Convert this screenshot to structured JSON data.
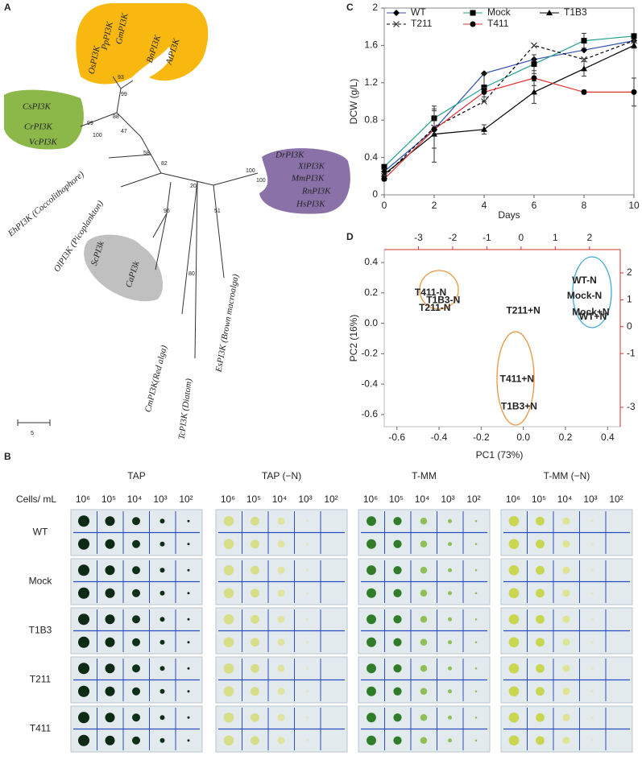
{
  "panel_labels": [
    "A",
    "B",
    "C",
    "D"
  ],
  "tree": {
    "clades": [
      "OsPI3K",
      "PpPI3K",
      "GmPI3K",
      "BnPI3K",
      "AtPI3K",
      "CsPI3K",
      "CrPI3K",
      "VcPI3K",
      "DrPI3K",
      "XlPI3K",
      "MmPI3K",
      "RnPI3K",
      "HsPI3K",
      "EhPI3K (Coccolithophore)",
      "OlPI3K (Picoplankton)",
      "ScPI3k",
      "CaPI3k",
      "CmPI3K(Red alga)",
      "TcPI3K (Diatom)",
      "EsPI3K (Brown macroalga)"
    ],
    "bootstrap": [
      "93",
      "99",
      "88",
      "99",
      "100",
      "47",
      "58",
      "82",
      "20",
      "100",
      "100",
      "96",
      "51",
      "80"
    ],
    "scale": "5"
  },
  "plates": {
    "media": [
      "TAP",
      "TAP (−N)",
      "T-MM",
      "T-MM (−N)"
    ],
    "cells_label": "Cells/ mL",
    "concentrations": [
      "10⁶",
      "10⁵",
      "10⁴",
      "10³",
      "10²"
    ],
    "strains": [
      "WT",
      "Mock",
      "T1B3",
      "T211",
      "T411"
    ]
  },
  "chart_data": [
    {
      "type": "line",
      "x": [
        0,
        2,
        4,
        6,
        8,
        10
      ],
      "xlim": [
        0,
        10
      ],
      "xticks": [
        0,
        2,
        4,
        6,
        8,
        10
      ],
      "ylim": [
        0,
        2
      ],
      "yticks": [
        0,
        0.4,
        0.8,
        1.2,
        1.6,
        2
      ],
      "x_label": "Days",
      "y_label": "DCW (g/L)",
      "series": [
        {
          "name": "WT",
          "color": "#3050b0",
          "marker": "diamond",
          "values": [
            0.25,
            0.7,
            1.3,
            1.45,
            1.55,
            1.65
          ]
        },
        {
          "name": "Mock",
          "color": "#20a090",
          "marker": "square",
          "values": [
            0.3,
            0.82,
            1.15,
            1.4,
            1.65,
            1.7
          ],
          "errors": [
            0.02,
            0.1,
            0.15,
            0.1,
            0.08,
            0.02
          ]
        },
        {
          "name": "T1B3",
          "color": "#000000",
          "marker": "triangle",
          "values": [
            0.22,
            0.65,
            0.7,
            1.1,
            1.35,
            1.6
          ],
          "errors": [
            0.02,
            0.3,
            0.05,
            0.12,
            0.08,
            0.03
          ]
        },
        {
          "name": "T211",
          "color": "#000000",
          "marker": "x",
          "line_style": "dashed",
          "values": [
            0.2,
            0.72,
            1.0,
            1.6,
            1.45,
            1.65
          ]
        },
        {
          "name": "T411",
          "color": "#e03030",
          "marker": "circle",
          "values": [
            0.17,
            0.7,
            1.1,
            1.25,
            1.1,
            1.1
          ],
          "errors": [
            0.02,
            0.2,
            0.05,
            0.08,
            0.02,
            0.15
          ]
        }
      ]
    },
    {
      "type": "scatter",
      "x_label": "PC1 (73%)",
      "y_label": "PC2 (16%)",
      "color": "#2020c0",
      "axis2_color": "#cc3333",
      "xlim": [
        -0.66,
        0.46
      ],
      "xticks": [
        -0.6,
        -0.4,
        -0.2,
        {
          "value": 0,
          "label": "0.0"
        },
        0.2,
        0.4
      ],
      "ylim": [
        -0.68,
        0.485
      ],
      "yticks": [
        -0.6,
        -0.4,
        -0.2,
        {
          "value": 0,
          "label": "0.0"
        },
        0.2,
        0.4
      ],
      "x2lim": [
        -4,
        2.9
      ],
      "x2ticks": [
        -3,
        -2,
        -1,
        0,
        1,
        2
      ],
      "y2lim": [
        -3.72,
        2.87
      ],
      "y2ticks": [
        -3,
        -1,
        0,
        1,
        2
      ],
      "labels": [
        "T411-N",
        "T1B3-N",
        "T211-N",
        "WT-N",
        "Mock-N",
        "Mock+N",
        "WT+N",
        "T211+N",
        "T411+N",
        "T1B3+N"
      ],
      "x": [
        -0.44,
        -0.38,
        -0.42,
        0.29,
        0.29,
        0.32,
        0.33,
        0.0,
        -0.03,
        -0.02
      ],
      "y": [
        0.2,
        0.15,
        0.1,
        0.28,
        0.18,
        0.07,
        0.04,
        0.08,
        -0.37,
        -0.55
      ]
    }
  ]
}
